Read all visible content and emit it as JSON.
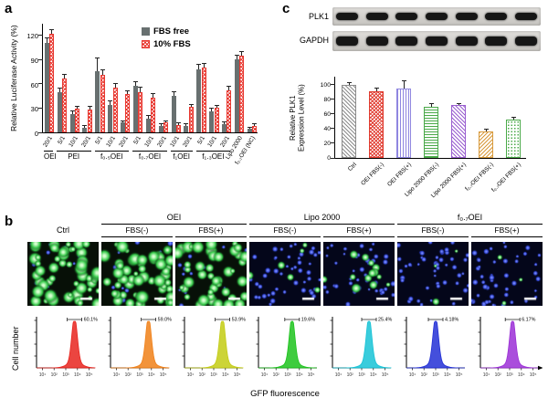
{
  "labels": {
    "a": "a",
    "b": "b",
    "c": "c"
  },
  "blot": {
    "rows": [
      {
        "label": "PLK1",
        "lanes": 7
      },
      {
        "label": "GAPDH",
        "lanes": 7
      }
    ]
  },
  "microscopy": {
    "header": [
      {
        "name": "Ctrl",
        "span": 1,
        "subs": []
      },
      {
        "name": "OEI",
        "span": 2,
        "subs": [
          "FBS(-)",
          "FBS(+)"
        ]
      },
      {
        "name": "Lipo 2000",
        "span": 2,
        "subs": [
          "FBS(-)",
          "FBS(+)"
        ]
      },
      {
        "name": "f₀.₇OEI",
        "span": 2,
        "subs": [
          "FBS(-)",
          "FBS(+)"
        ]
      }
    ],
    "images": [
      {
        "column": "Ctrl",
        "type": "green-dense"
      },
      {
        "column": "OEI FBS(-)",
        "type": "green-dense"
      },
      {
        "column": "OEI FBS(+)",
        "type": "green-medium"
      },
      {
        "column": "Lipo 2000 FBS(-)",
        "type": "blue-few-green"
      },
      {
        "column": "Lipo 2000 FBS(+)",
        "type": "blue-cluster-green"
      },
      {
        "column": "f₀.₇OEI FBS(-)",
        "type": "blue-rare-green"
      },
      {
        "column": "f₀.₇OEI FBS(+)",
        "type": "blue-rare-green"
      }
    ],
    "scale_bar": true
  },
  "chart_data": [
    {
      "id": "luciferase",
      "type": "bar",
      "title": "",
      "ylabel": "Relative Luciferase Activity (%)",
      "ylim": [
        0,
        135
      ],
      "yticks": [
        0,
        30,
        60,
        90,
        120
      ],
      "legend": [
        {
          "name": "FBS free",
          "color": "#687070",
          "pattern": "solid"
        },
        {
          "name": "10% FBS",
          "color": "#e8372f",
          "pattern": "crosshatch"
        }
      ],
      "groups": [
        {
          "name": "OEI",
          "bars": [
            {
              "label": "20/1",
              "fbs_free": 110,
              "fbs_free_err": 6,
              "fbs10": 121,
              "fbs10_err": 5
            }
          ]
        },
        {
          "name": "PEI",
          "bars": [
            {
              "label": "5/1",
              "fbs_free": 50,
              "fbs_free_err": 4,
              "fbs10": 66,
              "fbs10_err": 5
            },
            {
              "label": "10/1",
              "fbs_free": 23,
              "fbs_free_err": 3,
              "fbs10": 29,
              "fbs10_err": 3
            },
            {
              "label": "20/1",
              "fbs_free": 6,
              "fbs_free_err": 2,
              "fbs10": 28,
              "fbs10_err": 3
            }
          ]
        },
        {
          "name": "f₀.₅OEI",
          "bars": [
            {
              "label": "5/1",
              "fbs_free": 75,
              "fbs_free_err": 16,
              "fbs10": 71,
              "fbs10_err": 6
            },
            {
              "label": "10/1",
              "fbs_free": 34,
              "fbs_free_err": 4,
              "fbs10": 55,
              "fbs10_err": 5
            },
            {
              "label": "20/1",
              "fbs_free": 12,
              "fbs_free_err": 2,
              "fbs10": 47,
              "fbs10_err": 4
            }
          ]
        },
        {
          "name": "f₀.₇OEI",
          "bars": [
            {
              "label": "5/1",
              "fbs_free": 57,
              "fbs_free_err": 5,
              "fbs10": 50,
              "fbs10_err": 5
            },
            {
              "label": "10/1",
              "fbs_free": 17,
              "fbs_free_err": 3,
              "fbs10": 43,
              "fbs10_err": 4
            },
            {
              "label": "20/1",
              "fbs_free": 8,
              "fbs_free_err": 2,
              "fbs10": 12,
              "fbs10_err": 2
            }
          ]
        },
        {
          "name": "f₁OEI",
          "bars": [
            {
              "label": "10/1",
              "fbs_free": 45,
              "fbs_free_err": 4,
              "fbs10": 9,
              "fbs10_err": 2
            },
            {
              "label": "20/1",
              "fbs_free": 8,
              "fbs_free_err": 2,
              "fbs10": 31,
              "fbs10_err": 3
            }
          ]
        },
        {
          "name": "f₁.₃OEI",
          "bars": [
            {
              "label": "5/1",
              "fbs_free": 78,
              "fbs_free_err": 5,
              "fbs10": 80,
              "fbs10_err": 4
            },
            {
              "label": "10/1",
              "fbs_free": 26,
              "fbs_free_err": 3,
              "fbs10": 30,
              "fbs10_err": 3
            },
            {
              "label": "20/1",
              "fbs_free": 10,
              "fbs_free_err": 2,
              "fbs10": 52,
              "fbs10_err": 4
            }
          ]
        },
        {
          "name": "",
          "bars": [
            {
              "label": "Lipo 2000",
              "fbs_free": 90,
              "fbs_free_err": 5,
              "fbs10": 95,
              "fbs10_err": 4
            }
          ]
        },
        {
          "name": "",
          "bars": [
            {
              "label": "f₀.₇OEI (NC)",
              "fbs_free": 5,
              "fbs_free_err": 1,
              "fbs10": 8,
              "fbs10_err": 2
            }
          ]
        }
      ]
    },
    {
      "id": "plk1",
      "type": "bar",
      "title": "",
      "ylabel": "Relative PLK1 Expression Level (%)",
      "ylim": [
        0,
        112
      ],
      "yticks": [
        0,
        20,
        40,
        60,
        80,
        100
      ],
      "categories": [
        "Ctrl",
        "OEI FBS(-)",
        "OEI FBS(+)",
        "Lipo 2000 FBS(-)",
        "Lipo 2000 FBS(+)",
        "f₀.₇OEI FBS(-)",
        "f₀.₇OEI FBS(+)"
      ],
      "values": [
        100,
        91,
        95,
        70,
        72,
        36,
        52
      ],
      "errors": [
        2,
        3,
        9,
        3,
        2,
        2,
        3
      ],
      "bar_styles": [
        {
          "color": "#8c8c8c",
          "pattern": "diag"
        },
        {
          "color": "#e03a2e",
          "pattern": "crosshatch"
        },
        {
          "color": "#8f86e0",
          "pattern": "vert"
        },
        {
          "color": "#4aa948",
          "pattern": "horiz"
        },
        {
          "color": "#9a5fd0",
          "pattern": "diag"
        },
        {
          "color": "#d89a3c",
          "pattern": "diag2"
        },
        {
          "color": "#4aa948",
          "pattern": "dots"
        }
      ]
    },
    {
      "id": "flow",
      "type": "histogram-row",
      "xlabel": "GFP fluorescence",
      "ylabel": "Cell number",
      "xticks": [
        "10¹",
        "10²",
        "10³",
        "10⁴",
        "10⁵"
      ],
      "samples": [
        {
          "sample": "Ctrl",
          "percent": "60.1%",
          "color": "#e8251f",
          "peak_decade": 3.6
        },
        {
          "sample": "OEI FBS(-)",
          "percent": "59.0%",
          "color": "#f08018",
          "peak_decade": 3.6
        },
        {
          "sample": "OEI FBS(+)",
          "percent": "53.9%",
          "color": "#c3cc14",
          "peak_decade": 3.6
        },
        {
          "sample": "Lipo 2000 FBS(-)",
          "percent": "19.6%",
          "color": "#1dc31d",
          "peak_decade": 3.3
        },
        {
          "sample": "Lipo 2000 FBS(+)",
          "percent": "25.4%",
          "color": "#17c3d6",
          "peak_decade": 3.5
        },
        {
          "sample": "f₀.₇OEI FBS(-)",
          "percent": "4.18%",
          "color": "#2330d6",
          "peak_decade": 3.0
        },
        {
          "sample": "f₀.₇OEI FBS(+)",
          "percent": "6.17%",
          "color": "#9b2fd6",
          "peak_decade": 3.2
        }
      ]
    }
  ]
}
